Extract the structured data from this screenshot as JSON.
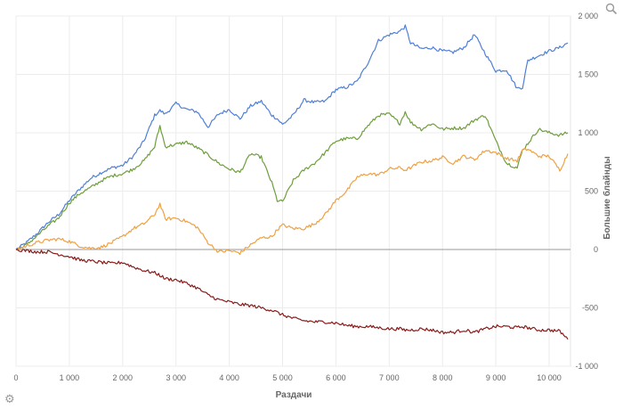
{
  "toolbar": {
    "zoom_icon": "magnifier-icon",
    "settings_icon": "gear-icon"
  },
  "chart_data": {
    "type": "line",
    "title": "",
    "xlabel": "Раздачи",
    "ylabel": "Большие блайнды",
    "xlim": [
      0,
      10400
    ],
    "ylim": [
      -1000,
      2000
    ],
    "x_ticks": [
      0,
      1000,
      2000,
      3000,
      4000,
      5000,
      6000,
      7000,
      8000,
      9000,
      10000
    ],
    "x_tick_labels": [
      "0",
      "1 000",
      "2 000",
      "3 000",
      "4 000",
      "5 000",
      "6 000",
      "7 000",
      "8 000",
      "9 000",
      "10 000"
    ],
    "y_ticks": [
      -1000,
      -500,
      0,
      500,
      1000,
      1500,
      2000
    ],
    "y_tick_labels": [
      "-1 000",
      "-500",
      "0",
      "500",
      "1 000",
      "1 500",
      "2 000"
    ],
    "y_axis_side": "right",
    "grid": true,
    "legend": "none",
    "x": [
      0,
      200,
      400,
      600,
      800,
      1000,
      1200,
      1400,
      1600,
      1800,
      2000,
      2200,
      2400,
      2600,
      2700,
      2800,
      3000,
      3200,
      3400,
      3600,
      3800,
      4000,
      4200,
      4400,
      4600,
      4800,
      4900,
      5000,
      5200,
      5400,
      5600,
      5800,
      6000,
      6200,
      6400,
      6600,
      6800,
      7000,
      7200,
      7300,
      7400,
      7600,
      7800,
      8000,
      8200,
      8400,
      8600,
      8800,
      9000,
      9200,
      9400,
      9500,
      9600,
      9800,
      10000,
      10200,
      10350
    ],
    "series": [
      {
        "color": "#4f7fd6",
        "values": [
          0,
          60,
          140,
          230,
          300,
          420,
          520,
          610,
          660,
          700,
          720,
          800,
          930,
          1150,
          1190,
          1160,
          1250,
          1200,
          1180,
          1050,
          1160,
          1200,
          1120,
          1230,
          1270,
          1150,
          1120,
          1070,
          1150,
          1280,
          1260,
          1270,
          1370,
          1390,
          1440,
          1600,
          1790,
          1840,
          1870,
          1910,
          1770,
          1720,
          1730,
          1700,
          1690,
          1730,
          1840,
          1680,
          1530,
          1540,
          1380,
          1390,
          1620,
          1660,
          1700,
          1730,
          1770
        ]
      },
      {
        "color": "#6e9e3c",
        "values": [
          0,
          40,
          120,
          200,
          270,
          400,
          480,
          530,
          590,
          630,
          650,
          690,
          760,
          880,
          1060,
          880,
          900,
          920,
          870,
          810,
          740,
          690,
          660,
          820,
          790,
          570,
          420,
          410,
          590,
          680,
          740,
          830,
          930,
          950,
          950,
          1060,
          1150,
          1160,
          1080,
          1180,
          1090,
          1030,
          1080,
          1030,
          1040,
          1040,
          1110,
          1150,
          930,
          740,
          700,
          850,
          910,
          1030,
          1000,
          980,
          1000
        ]
      },
      {
        "color": "#f0a040",
        "values": [
          0,
          30,
          60,
          80,
          90,
          70,
          30,
          10,
          20,
          60,
          110,
          180,
          220,
          300,
          390,
          260,
          270,
          240,
          190,
          60,
          -20,
          -10,
          -30,
          40,
          100,
          110,
          170,
          210,
          180,
          180,
          220,
          300,
          420,
          500,
          620,
          650,
          640,
          690,
          700,
          680,
          700,
          750,
          760,
          790,
          740,
          800,
          770,
          850,
          830,
          780,
          760,
          850,
          860,
          800,
          800,
          680,
          820
        ]
      },
      {
        "color": "#8b1a1a",
        "values": [
          0,
          -10,
          -20,
          -20,
          -40,
          -60,
          -90,
          -100,
          -110,
          -120,
          -110,
          -150,
          -180,
          -200,
          -220,
          -250,
          -260,
          -290,
          -330,
          -390,
          -430,
          -450,
          -470,
          -480,
          -500,
          -520,
          -540,
          -560,
          -590,
          -610,
          -620,
          -620,
          -630,
          -650,
          -660,
          -660,
          -670,
          -680,
          -680,
          -690,
          -690,
          -680,
          -690,
          -710,
          -710,
          -690,
          -710,
          -680,
          -660,
          -660,
          -670,
          -660,
          -670,
          -690,
          -690,
          -700,
          -770
        ]
      }
    ]
  }
}
